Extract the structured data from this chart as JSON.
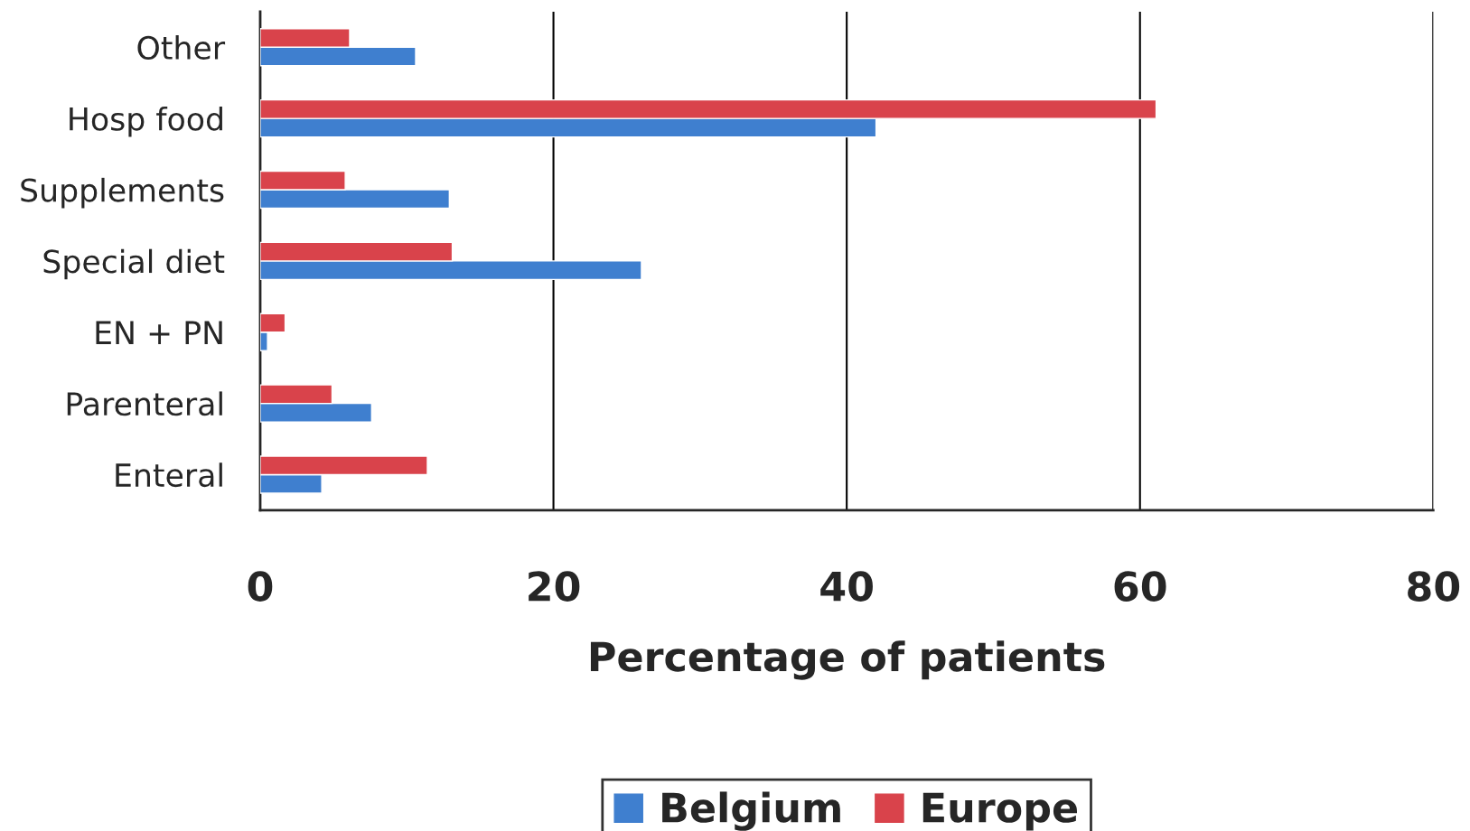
{
  "chart_data": {
    "type": "bar",
    "orientation": "horizontal",
    "xlabel": "Percentage of patients",
    "categories": [
      "Other",
      "Hosp food",
      "Supplements",
      "Special diet",
      "EN + PN",
      "Parenteral",
      "Enteral"
    ],
    "series": [
      {
        "name": "Belgium",
        "color": "#3f7fcf",
        "values": [
          10.6,
          42.0,
          12.9,
          26.0,
          0.5,
          7.6,
          4.2
        ]
      },
      {
        "name": "Europe",
        "color": "#d9434b",
        "values": [
          6.1,
          61.1,
          5.8,
          13.1,
          1.7,
          4.9,
          11.4
        ]
      }
    ],
    "xlim": [
      0,
      80
    ],
    "xticks": [
      0,
      20,
      40,
      60,
      80
    ],
    "grid": "x",
    "legend": "bottom"
  }
}
